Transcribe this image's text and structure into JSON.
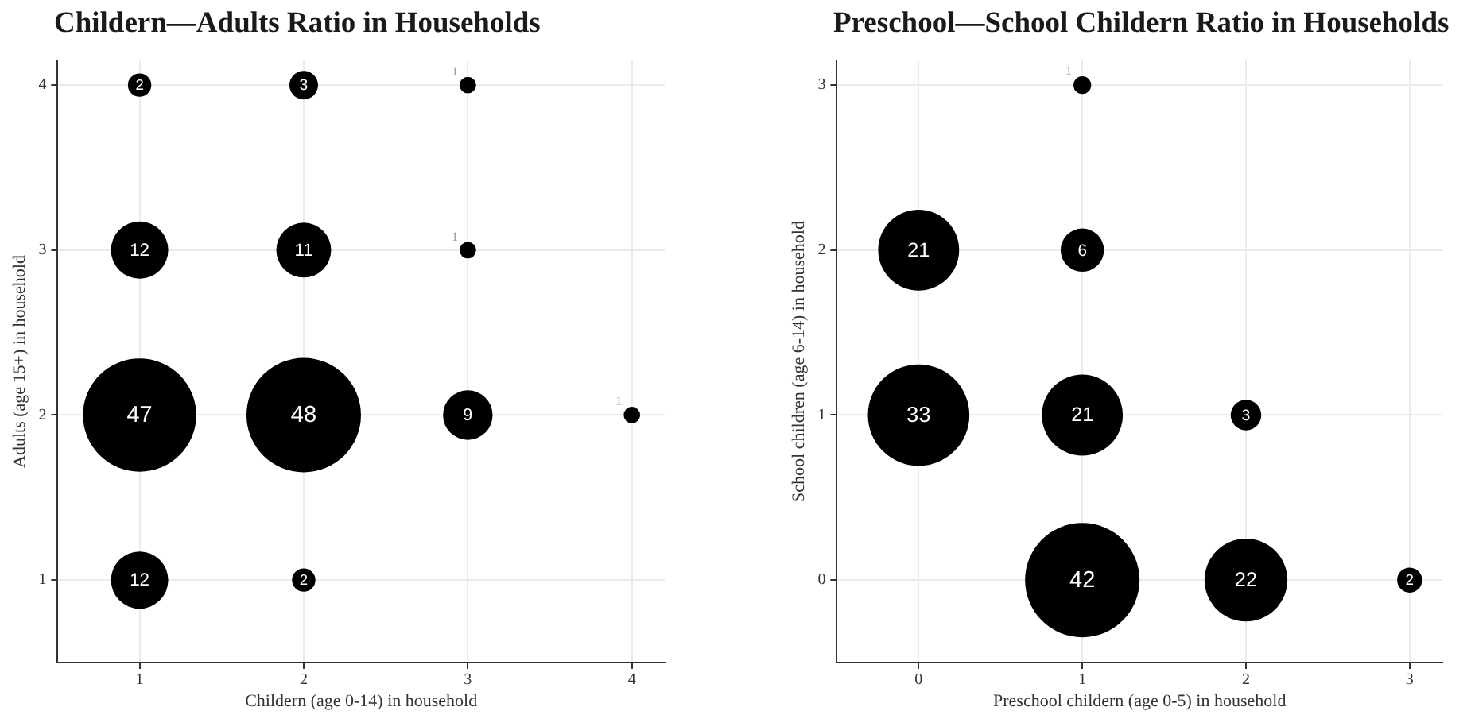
{
  "chart_data": [
    {
      "type": "bubble",
      "title": "Childern—Adults Ratio in Households",
      "xlabel": "Childern (age 0-14) in household",
      "ylabel": "Adults (age 15+) in household",
      "x": [
        1,
        2,
        3,
        1,
        2,
        3,
        1,
        2,
        3,
        4,
        1,
        2
      ],
      "values": [
        4,
        4,
        4,
        3,
        3,
        3,
        2,
        2,
        2,
        2,
        1,
        1
      ],
      "sizes": [
        2,
        3,
        1,
        12,
        11,
        1,
        47,
        48,
        9,
        1,
        12,
        2
      ],
      "value_labels": [
        "2",
        "3",
        "1",
        "12",
        "11",
        "1",
        "47",
        "48",
        "9",
        "1",
        "12",
        "2"
      ],
      "color": "#000000",
      "xlim": [
        0.5,
        4.2
      ],
      "ylim": [
        0.5,
        4.15
      ],
      "xticks": [
        1,
        2,
        3,
        4
      ],
      "yticks": [
        1,
        2,
        3,
        4
      ],
      "grid": true
    },
    {
      "type": "bubble",
      "title": "Preschool—School Childern Ratio in Households",
      "xlabel": "Preschool childern (age 0-5) in household",
      "ylabel": "School children (age 6-14) in household",
      "x": [
        1,
        0,
        1,
        0,
        1,
        2,
        1,
        2,
        3
      ],
      "values": [
        3,
        2,
        2,
        1,
        1,
        1,
        0,
        0,
        0
      ],
      "sizes": [
        1,
        21,
        6,
        33,
        21,
        3,
        42,
        22,
        2
      ],
      "value_labels": [
        "1",
        "21",
        "6",
        "33",
        "21",
        "3",
        "42",
        "22",
        "2"
      ],
      "color": "#000000",
      "xlim": [
        -0.5,
        3.2
      ],
      "ylim": [
        -0.5,
        3.15
      ],
      "xticks": [
        0,
        1,
        2,
        3
      ],
      "yticks": [
        0,
        1,
        2,
        3
      ],
      "grid": true
    }
  ]
}
